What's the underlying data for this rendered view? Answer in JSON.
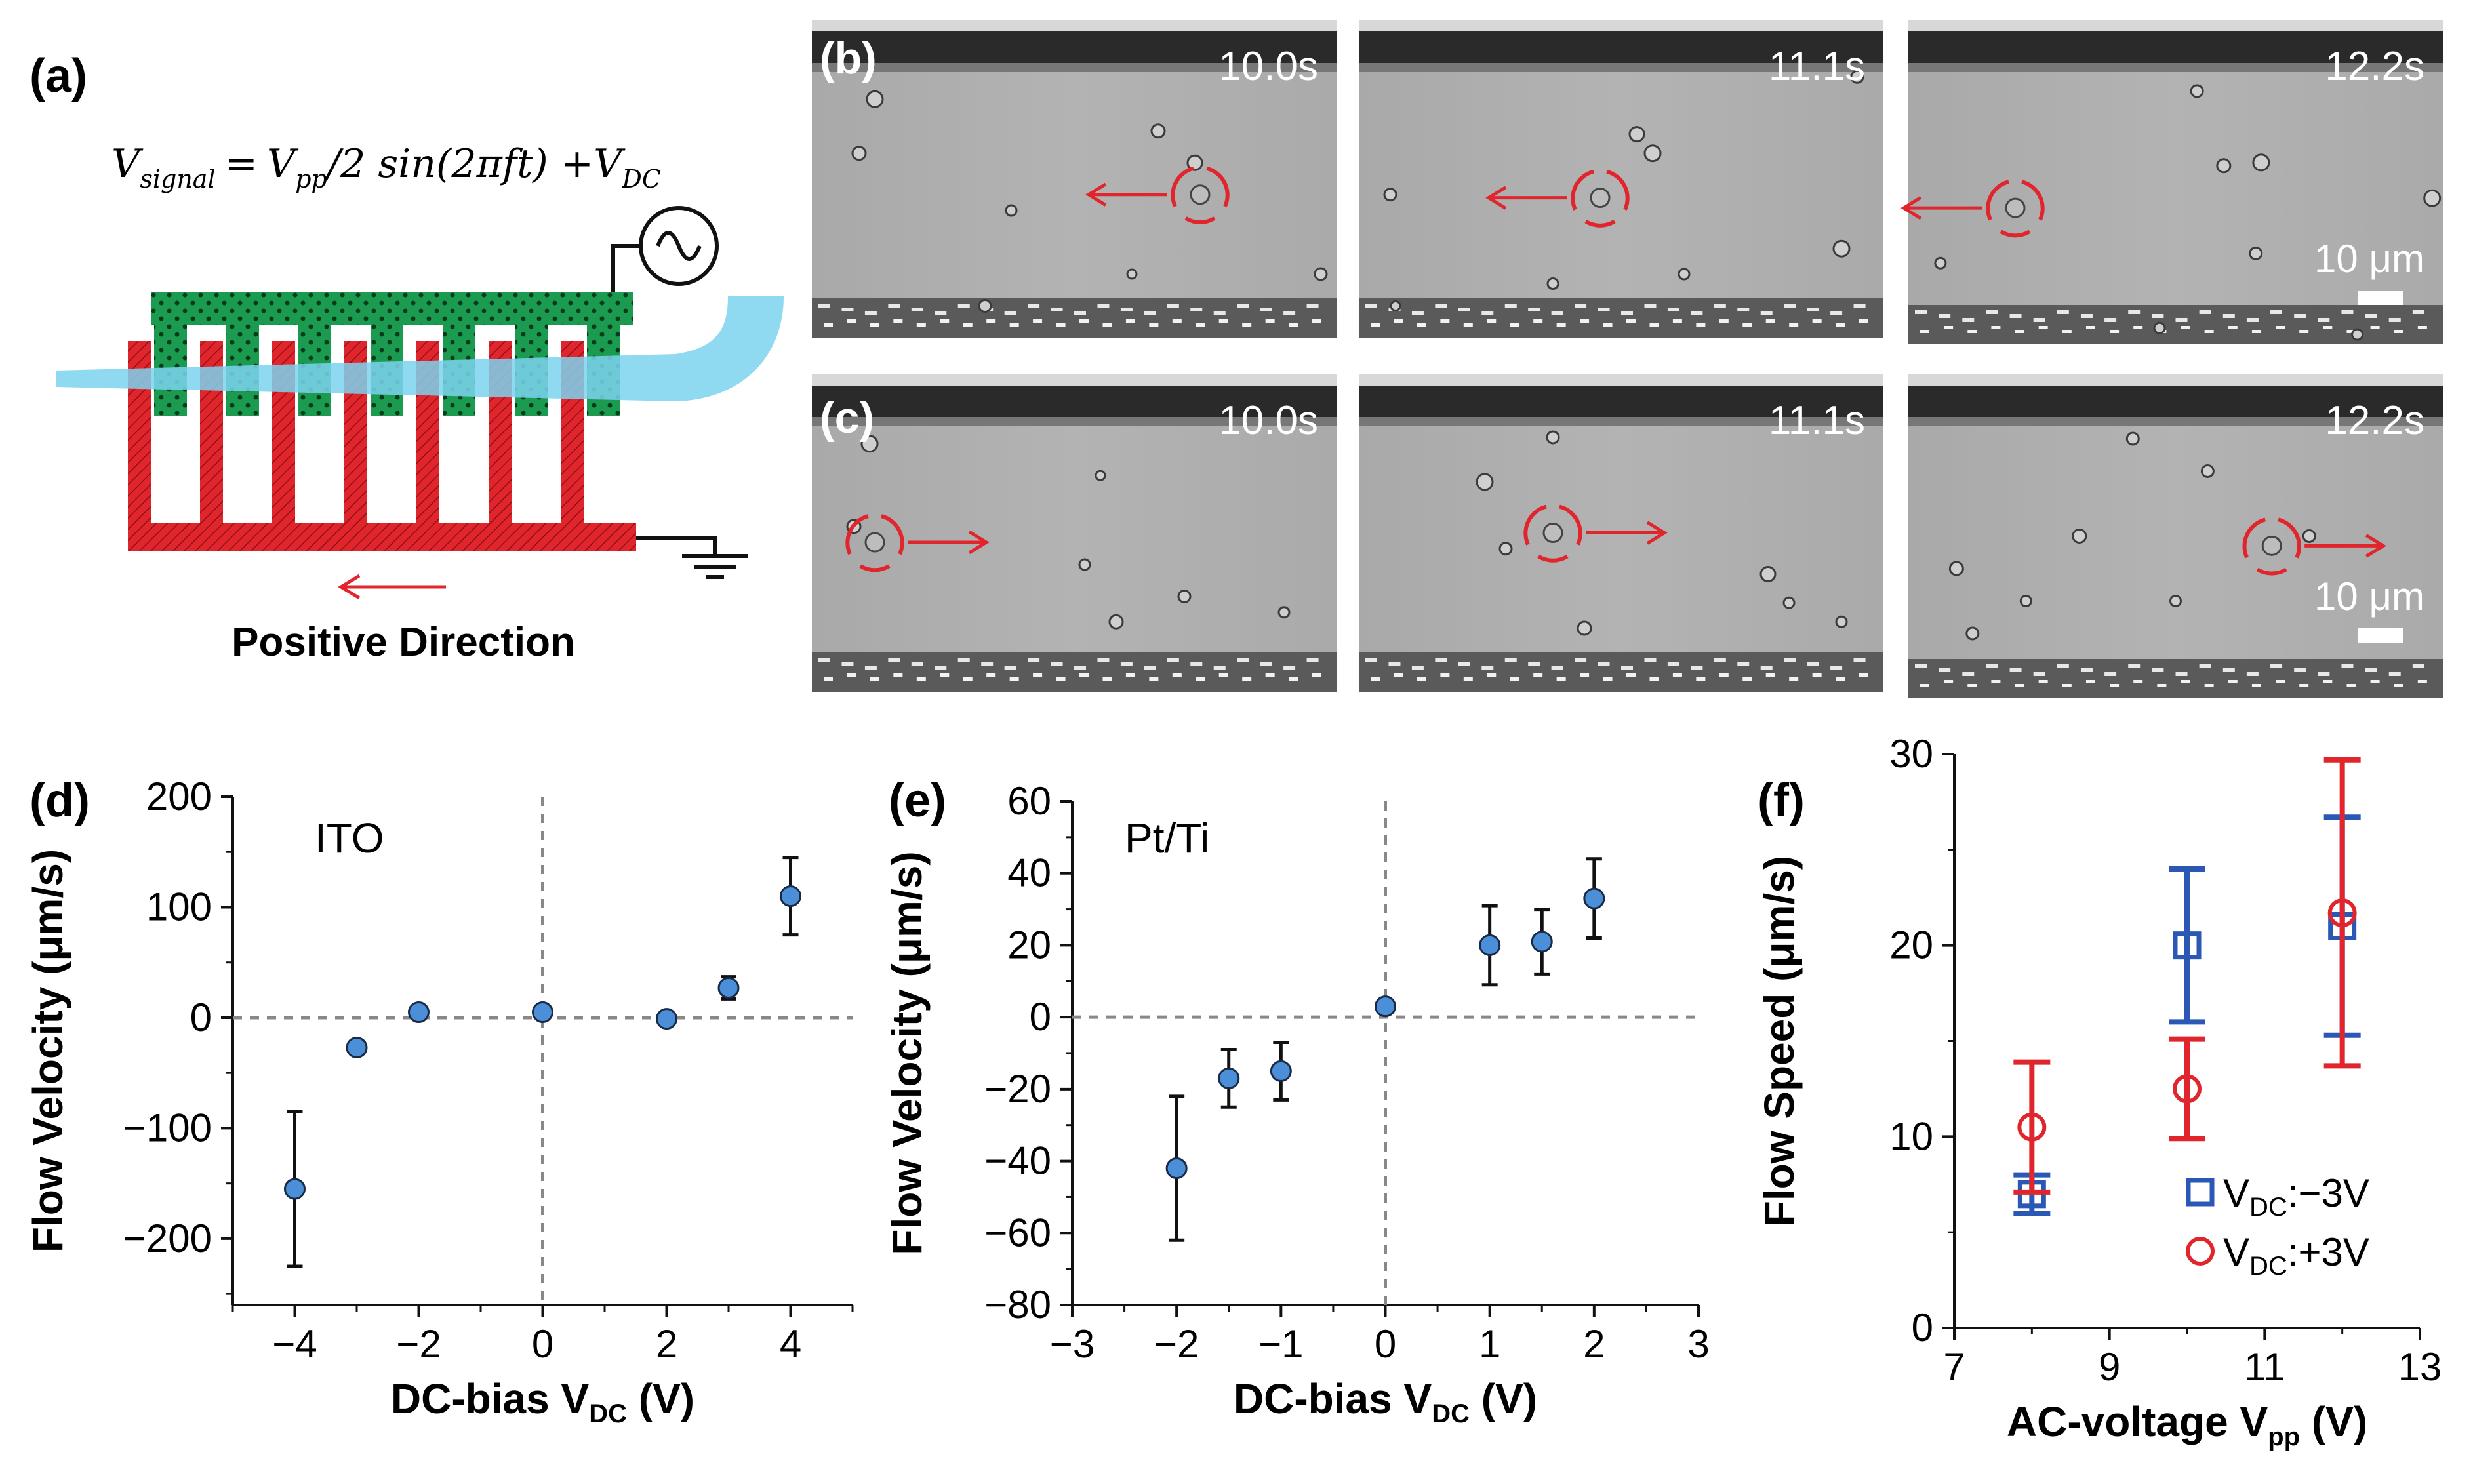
{
  "panels": {
    "a": {
      "label": "(a)",
      "eq_V": "V",
      "eq_sub_signal": "signal",
      "eq_eq": "=",
      "eq_Vpp": "V",
      "eq_sub_pp": "pp",
      "eq_rest": "/2 sin(2πft) +V",
      "eq_sub_DC": "DC",
      "positive_direction": "Positive Direction",
      "colors": {
        "green": "#1a9b50",
        "red": "#e0262c",
        "blue": "#7dd3ee"
      }
    },
    "b": {
      "label": "(b)",
      "times": [
        "10.0s",
        "11.1s",
        "12.2s"
      ],
      "scale": "10 μm"
    },
    "c": {
      "label": "(c)",
      "times": [
        "10.0s",
        "11.1s",
        "12.2s"
      ],
      "scale": "10 μm"
    },
    "d": {
      "label": "(d)"
    },
    "e": {
      "label": "(e)"
    },
    "f": {
      "label": "(f)"
    }
  },
  "chart_data": [
    {
      "id": "d",
      "type": "scatter",
      "annotation": "ITO",
      "xlabel": "DC-bias V",
      "xlabel_sub": "DC",
      "xlabel_unit": " (V)",
      "ylabel": "Flow Velocity (μm/s)",
      "xlim": [
        -5,
        5
      ],
      "ylim": [
        -260,
        200
      ],
      "xticks": [
        -4,
        -2,
        0,
        2,
        4
      ],
      "xtick_labels": [
        "−4",
        "−2",
        "0",
        "2",
        "4"
      ],
      "yticks": [
        -200,
        -100,
        0,
        100,
        200
      ],
      "ytick_labels": [
        "−200",
        "−100",
        "0",
        "100",
        "200"
      ],
      "series": [
        {
          "name": "ITO",
          "color": "#4a8fd8",
          "x": [
            -4,
            -3,
            -2,
            0,
            2,
            3,
            4
          ],
          "y": [
            -155,
            -27,
            5,
            5,
            -1,
            27,
            110
          ],
          "err": [
            70,
            0,
            0,
            0,
            0,
            10,
            35
          ]
        }
      ]
    },
    {
      "id": "e",
      "type": "scatter",
      "annotation": "Pt/Ti",
      "xlabel": "DC-bias V",
      "xlabel_sub": "DC",
      "xlabel_unit": " (V)",
      "ylabel": "Flow Velocity (μm/s)",
      "xlim": [
        -3,
        3
      ],
      "ylim": [
        -80,
        60
      ],
      "xticks": [
        -3,
        -2,
        -1,
        0,
        1,
        2,
        3
      ],
      "xtick_labels": [
        "−3",
        "−2",
        "−1",
        "0",
        "1",
        "2",
        "3"
      ],
      "yticks": [
        -80,
        -60,
        -40,
        -20,
        0,
        20,
        40,
        60
      ],
      "ytick_labels": [
        "−80",
        "−60",
        "−40",
        "−20",
        "0",
        "20",
        "40",
        "60"
      ],
      "series": [
        {
          "name": "Pt/Ti",
          "color": "#4a8fd8",
          "x": [
            -2,
            -1.5,
            -1,
            0,
            1,
            1.5,
            2
          ],
          "y": [
            -42,
            -17,
            -15,
            3,
            20,
            21,
            33
          ],
          "err": [
            20,
            8,
            8,
            0,
            11,
            9,
            11
          ]
        }
      ]
    },
    {
      "id": "f",
      "type": "scatter",
      "xlabel": "AC-voltage V",
      "xlabel_sub": "pp",
      "xlabel_unit": " (V)",
      "ylabel": "Flow Speed (μm/s)",
      "xlim": [
        7,
        13
      ],
      "ylim": [
        0,
        30
      ],
      "xticks": [
        7,
        9,
        11,
        13
      ],
      "xtick_labels": [
        "7",
        "9",
        "11",
        "13"
      ],
      "yticks": [
        0,
        10,
        20,
        30
      ],
      "ytick_labels": [
        "0",
        "10",
        "20",
        "30"
      ],
      "legend_position": "bottom-right",
      "series": [
        {
          "name": "V",
          "name_sub": "DC",
          "name_rest": ":−3V",
          "marker": "square",
          "color": "#2b57b5",
          "x": [
            8,
            10,
            12
          ],
          "y": [
            7,
            20,
            21
          ],
          "err": [
            1,
            4,
            5.7
          ]
        },
        {
          "name": "V",
          "name_sub": "DC",
          "name_rest": ":+3V",
          "marker": "circle",
          "color": "#e0262c",
          "x": [
            8,
            10,
            12
          ],
          "y": [
            10.5,
            12.5,
            21.7
          ],
          "err": [
            3.4,
            2.6,
            8
          ]
        }
      ]
    }
  ]
}
